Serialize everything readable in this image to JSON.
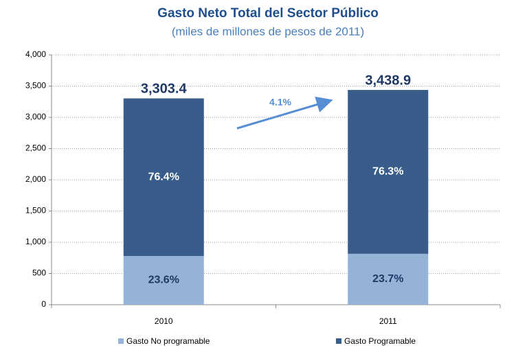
{
  "chart_data": {
    "type": "stacked_bar",
    "title": "Gasto Neto Total del Sector Público",
    "subtitle": "(miles de millones de pesos de 2011)",
    "categories": [
      "2010",
      "2011"
    ],
    "series": [
      {
        "name": "Gasto No programable",
        "color": "#95b3d7",
        "values": [
          779.6,
          815.0
        ],
        "labels": [
          "23.6%",
          "23.7%"
        ]
      },
      {
        "name": "Gasto Programable",
        "color": "#385d8a",
        "values": [
          2523.8,
          2623.9
        ],
        "labels": [
          "76.4%",
          "76.3%"
        ]
      }
    ],
    "totals": [
      3303.4,
      3438.9
    ],
    "total_labels": [
      "3,303.4",
      "3,438.9"
    ],
    "annotation": "4.1%",
    "ylim": [
      0,
      4000
    ],
    "yticks": [
      0,
      500,
      {
        "value": 1000,
        "label": "1,000"
      },
      {
        "value": 1500,
        "label": "1,500"
      },
      {
        "value": 2000,
        "label": "2,000"
      },
      {
        "value": 2500,
        "label": "2,500"
      },
      {
        "value": 3000,
        "label": "3,000"
      },
      {
        "value": 3500,
        "label": "3,500"
      },
      {
        "value": 4000,
        "label": "4,000"
      }
    ],
    "grid": true,
    "legend": "bottom"
  }
}
